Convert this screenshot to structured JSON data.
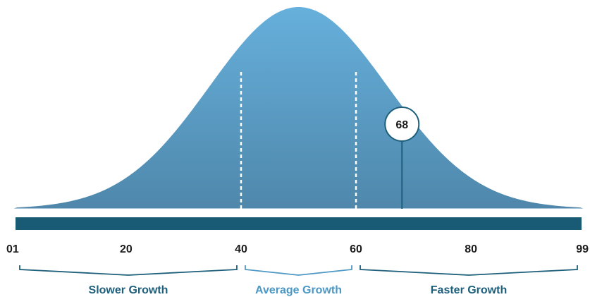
{
  "chart_data": {
    "type": "area",
    "title": "",
    "xlabel": "",
    "ylabel": "",
    "xlim": [
      1,
      99
    ],
    "x_ticks": [
      "01",
      "20",
      "40",
      "60",
      "80",
      "99"
    ],
    "x_tick_values": [
      1,
      20,
      40,
      60,
      80,
      99
    ],
    "distribution": "normal",
    "mean": 50,
    "boundaries": [
      40,
      60
    ],
    "marker": {
      "value": 68,
      "label": "68"
    },
    "groups": [
      {
        "label": "Slower Growth",
        "from": 1,
        "to": 40,
        "color": "#1e5f7c"
      },
      {
        "label": "Average Growth",
        "from": 40,
        "to": 60,
        "color": "#4d97c4"
      },
      {
        "label": "Faster Growth",
        "from": 60,
        "to": 99,
        "color": "#1e5f7c"
      }
    ],
    "colors": {
      "curve_top": "#66b0dc",
      "curve_bottom": "#4f87ab",
      "axis_bar": "#195a74",
      "marker_line": "#1e5f7c"
    }
  }
}
